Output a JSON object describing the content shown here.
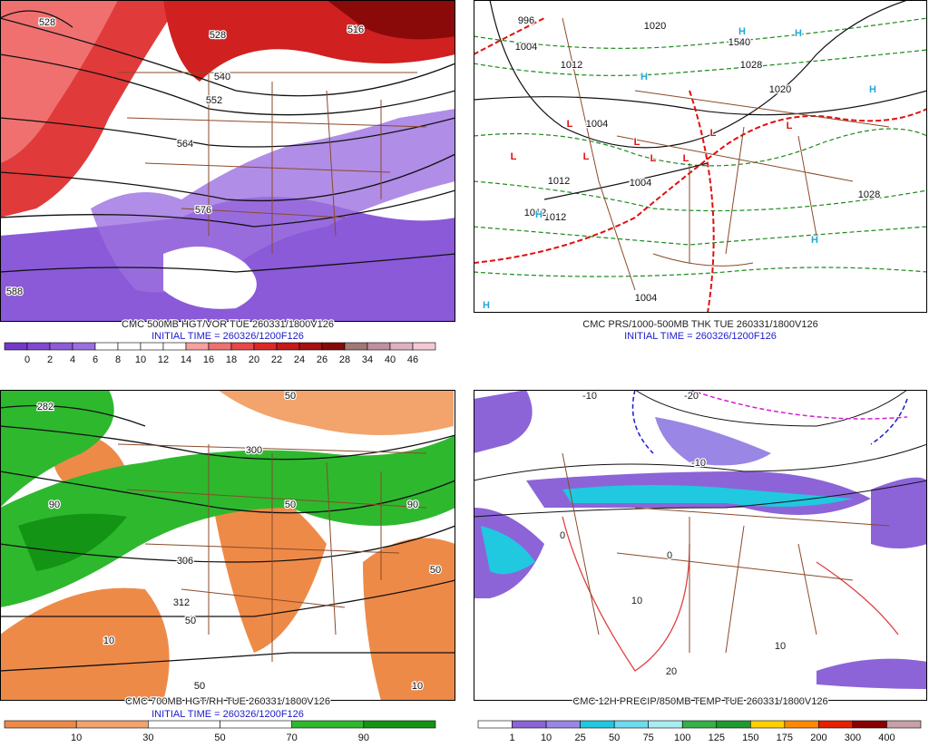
{
  "panels": [
    {
      "title": "CMC 500MB HGT/VOR TUE 260331/1800V126",
      "initial_time": "INITIAL TIME = 260326/1200F126",
      "colorbar": {
        "labels": [
          "0",
          "2",
          "4",
          "6",
          "8",
          "10",
          "12",
          "14",
          "16",
          "18",
          "20",
          "22",
          "24",
          "26",
          "28",
          "34",
          "40",
          "46"
        ],
        "colors": [
          "#7338c8",
          "#8048d0",
          "#8e5ad8",
          "#9c6ee0",
          "#ffffff",
          "#ffffff",
          "#ffffff",
          "#ffffff",
          "#f6a0a0",
          "#f07070",
          "#e84848",
          "#dd2828",
          "#c81818",
          "#a81010",
          "#880808",
          "#a07878",
          "#c090a0",
          "#e0b0c0",
          "#f4c8d4"
        ]
      },
      "contour_labels": [
        "528",
        "528",
        "516",
        "540",
        "552",
        "564",
        "576",
        "588"
      ]
    },
    {
      "title": "CMC PRS/1000-500MB THK TUE 260331/1800V126",
      "initial_time": "INITIAL TIME = 260326/1200F126",
      "contour_labels": [
        "996",
        "1004",
        "1020",
        "1020",
        "1028",
        "1020",
        "1012",
        "1004",
        "1012",
        "1012",
        "1004",
        "1012",
        "1028",
        "1004",
        "540"
      ],
      "highs": [
        "H",
        "H",
        "H",
        "H",
        "H",
        "H",
        "H"
      ],
      "lows": [
        "L",
        "L",
        "L",
        "L",
        "L",
        "L",
        "L",
        "L"
      ]
    },
    {
      "title": "CMC 700MB HGT/RH TUE 260331/1800V126",
      "initial_time": "INITIAL TIME = 260326/1200F126",
      "colorbar": {
        "labels": [
          "10",
          "30",
          "50",
          "70",
          "90"
        ],
        "colors": [
          "#ee8a48",
          "#f2a46c",
          "#ffffff",
          "#ffffff",
          "#2eb82e",
          "#149414"
        ]
      },
      "contour_labels": [
        "282",
        "300",
        "306",
        "312",
        "50",
        "90",
        "50",
        "50",
        "10",
        "50",
        "90",
        "50",
        "10"
      ]
    },
    {
      "title": "CMC 12H PRECIP/850MB TEMP TUE 260331/1800V126",
      "colorbar": {
        "labels": [
          "1",
          "10",
          "25",
          "50",
          "75",
          "100",
          "125",
          "150",
          "175",
          "200",
          "300",
          "400"
        ],
        "colors": [
          "#ffffff",
          "#8c64d8",
          "#9a86e4",
          "#20c8e0",
          "#6cdcee",
          "#a8ecf4",
          "#36b048",
          "#1e9a2e",
          "#ffd000",
          "#ff8800",
          "#e62000",
          "#8a0000",
          "#c8a0a8"
        ]
      },
      "contour_labels": [
        "-10",
        "-20",
        "-10",
        "0",
        "0",
        "10",
        "10",
        "20"
      ]
    }
  ]
}
